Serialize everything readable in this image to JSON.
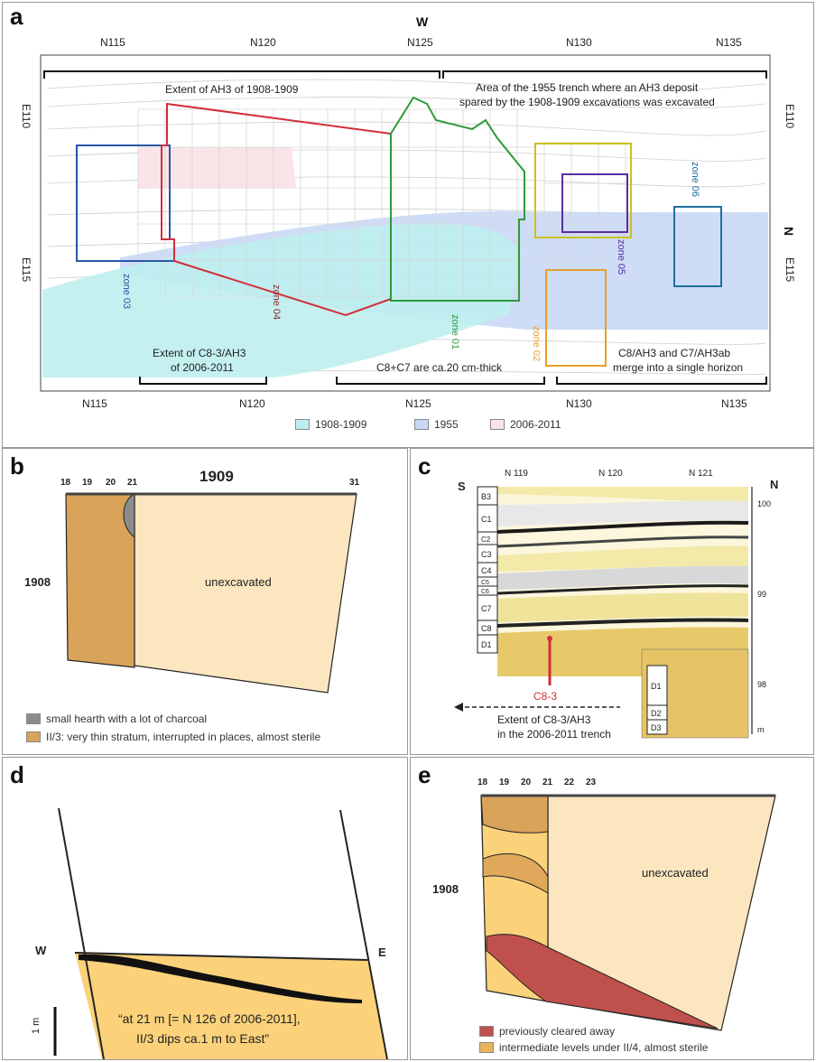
{
  "panel_a": {
    "letter": "a",
    "compass_w": "W",
    "compass_n": "N",
    "top_ticks": [
      "N115",
      "N120",
      "N125",
      "N130",
      "N135"
    ],
    "bottom_ticks": [
      "N115",
      "N120",
      "N125",
      "N130",
      "N135"
    ],
    "left_ticks": [
      "E110",
      "E115"
    ],
    "right_ticks": [
      "E110",
      "E115"
    ],
    "bracket_top_left": "Extent of AH3 of 1908-1909",
    "bracket_top_right_line1": "Area of the 1955 trench where an AH3 deposit",
    "bracket_top_right_line2": "spared by the 1908-1909 excavations was excavated",
    "bracket_bottom_left_line1": "Extent of C8-3/AH3",
    "bracket_bottom_left_line2": "of 2006-2011",
    "bracket_bottom_mid": "C8+C7 are ca.20 cm-thick",
    "bracket_bottom_right_line1": "C8/AH3 and C7/AH3ab",
    "bracket_bottom_right_line2": "merge into a single horizon",
    "zones": [
      "zone 03",
      "zone 04",
      "zone 01",
      "zone 02",
      "zone 05",
      "zone 06"
    ],
    "legend": [
      {
        "label": "1908-1909",
        "color": "#bfeeee"
      },
      {
        "label": "1955",
        "color": "#c9d8f5"
      },
      {
        "label": "2006-2011",
        "color": "#fbe3e6"
      }
    ]
  },
  "panel_b": {
    "letter": "b",
    "year_top": "1909",
    "year_side": "1908",
    "col_ticks": [
      "18",
      "19",
      "20",
      "21",
      "31"
    ],
    "unexcavated": "unexcavated",
    "legend": [
      {
        "label": "small hearth with a lot of charcoal",
        "color": "#8c8c8c"
      },
      {
        "label": "II/3: very thin stratum, interrupted in places, almost sterile",
        "color": "#d9a35a"
      }
    ]
  },
  "panel_c": {
    "letter": "c",
    "south": "S",
    "north": "N",
    "top_ticks": [
      "N 119",
      "N 120",
      "N 121"
    ],
    "layers": [
      "B3",
      "C1",
      "C2",
      "C3",
      "C4",
      "C5",
      "C6",
      "C7",
      "C8",
      "D1"
    ],
    "layers_lower": [
      "D1",
      "D2",
      "D3"
    ],
    "elevations": [
      "100",
      "99",
      "98",
      "m"
    ],
    "c83": "C8-3",
    "extent_line1": "Extent of C8-3/AH3",
    "extent_line2": "in the 2006-2011 trench"
  },
  "panel_d": {
    "letter": "d",
    "west": "W",
    "east": "E",
    "scale": "1 m",
    "quote_line1": "“at 21 m [= N 126 of 2006-2011],",
    "quote_line2": "II/3 dips ca.1 m to East”"
  },
  "panel_e": {
    "letter": "e",
    "year_side": "1908",
    "col_ticks": [
      "18",
      "19",
      "20",
      "21",
      "22",
      "23"
    ],
    "unexcavated": "unexcavated",
    "legend": [
      {
        "label": "previously cleared away",
        "color": "#c0504d"
      },
      {
        "label": "intermediate levels under II/4, almost sterile",
        "color": "#e8b45a"
      }
    ]
  },
  "colors": {
    "cyan_1908": "#bfeeee",
    "blue_1955": "#c9d8f5",
    "pink_2006": "#fbe3e6",
    "red_outline": "#d22e3a",
    "green_outline": "#2e9a3a",
    "yellow_outline": "#c9c21e",
    "orange_outline": "#e6a02a",
    "purple_outline": "#5a2ea0",
    "blue_outline": "#2a56a8",
    "teal_outline": "#1f6fa0",
    "sediment_light": "#fbe6c0",
    "sediment_dark": "#d9a35a"
  }
}
